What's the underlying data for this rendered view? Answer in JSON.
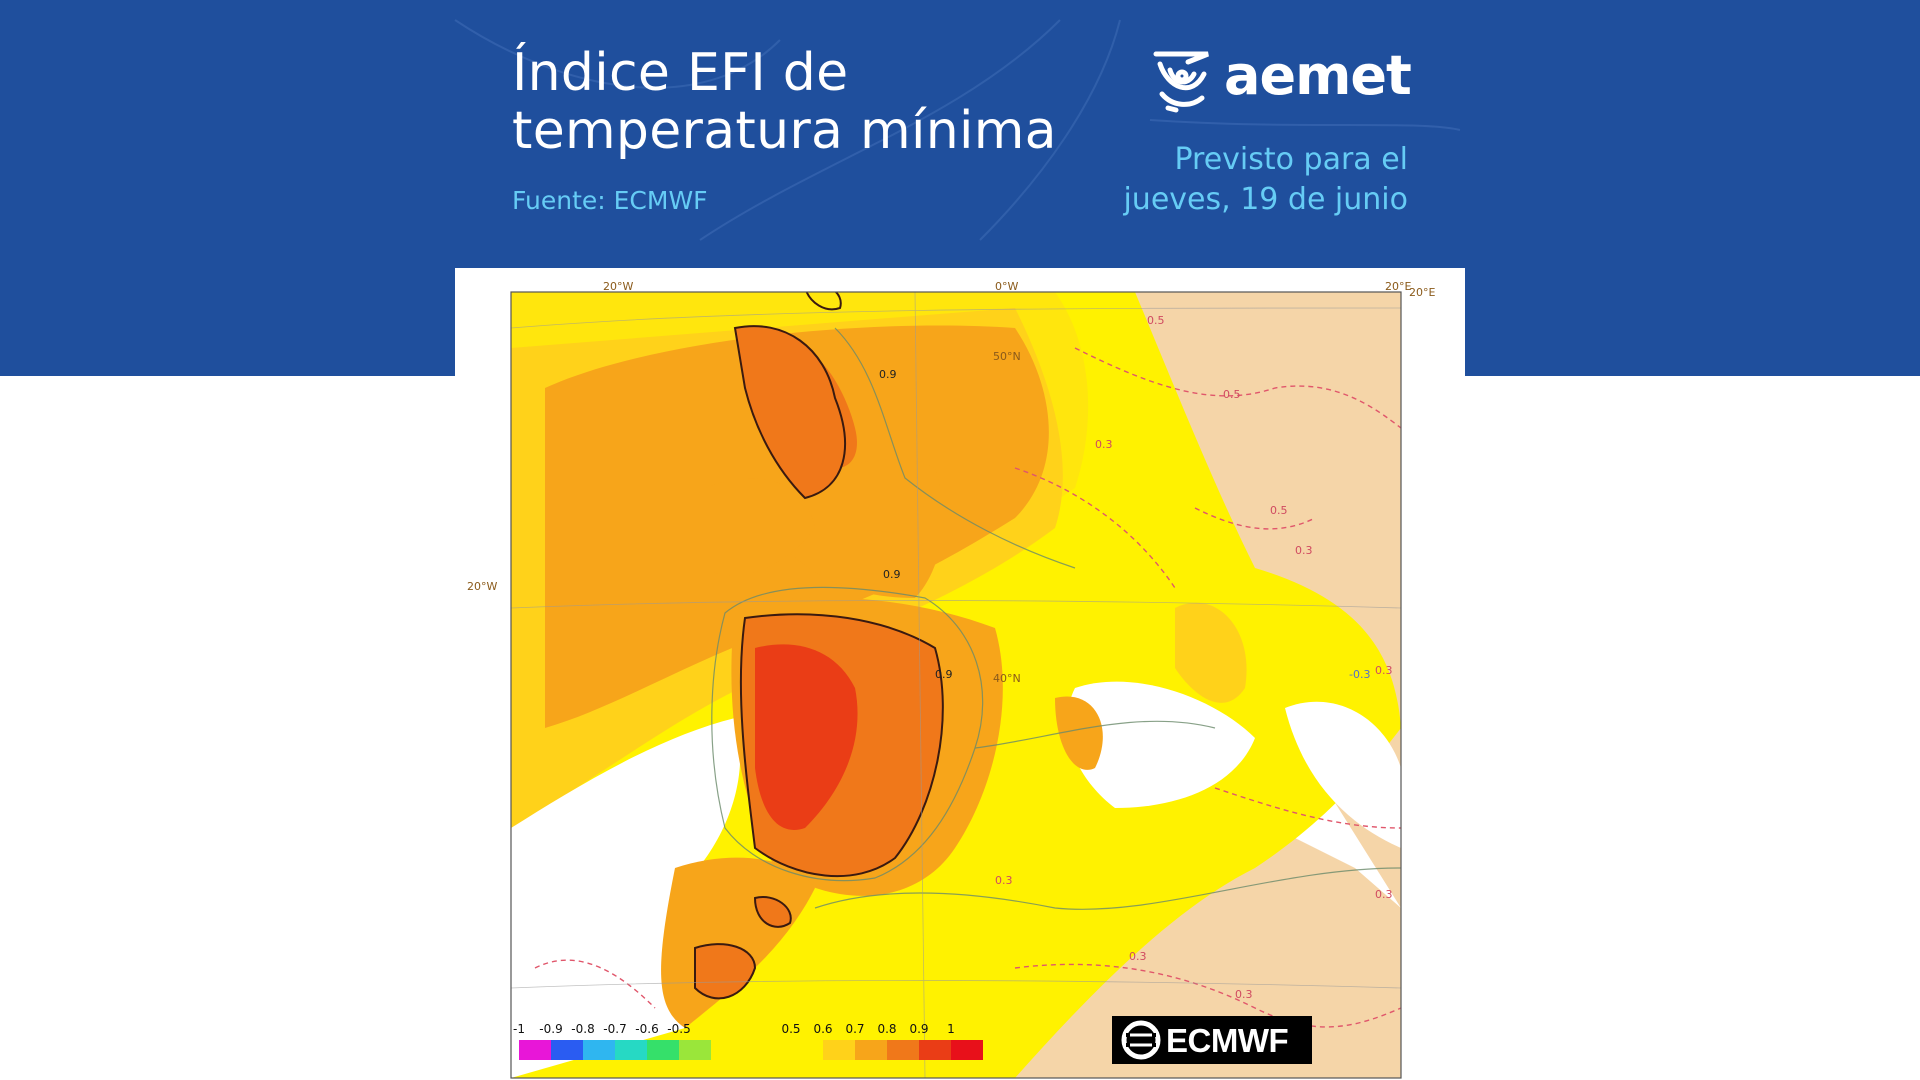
{
  "header": {
    "title_line1": "Índice EFI de",
    "title_line2": "temperatura mínima",
    "source": "Fuente: ECMWF",
    "brand": "aemet",
    "forecast_line1": "Previsto para el",
    "forecast_line2": "jueves, 19 de junio"
  },
  "map": {
    "graticule_labels": {
      "top_left": "20°W",
      "top_center": "0°W",
      "top_right": "20°E",
      "top_right_b": "20°E",
      "left": "20°W",
      "lat_upper": "50°N",
      "lat_lower": "40°N"
    },
    "contour_labels": [
      "0.9",
      "0.9",
      "0.5",
      "0.5",
      "0.5",
      "0.3",
      "0.3",
      "0.3",
      "0.3",
      "-0.3",
      "0.3",
      "0.9",
      "0.3",
      "0.3"
    ]
  },
  "colorbar": {
    "ticks": [
      "-1",
      "-0.9",
      "-0.8",
      "-0.7",
      "-0.6",
      "-0.5",
      "0.5",
      "0.6",
      "0.7",
      "0.8",
      "0.9",
      "1"
    ],
    "negative_colors": [
      "#e816d8",
      "#2a5cf2",
      "#2fb6f0",
      "#26d9c4",
      "#35e06a",
      "#9ae63a"
    ],
    "positive_colors": [
      "#fff200",
      "#ffd21a",
      "#f7a51a",
      "#f0781a",
      "#ea3d16",
      "#e8101a"
    ]
  },
  "ecmwf_logo": "ECMWF",
  "colors": {
    "band": "#1f4f9d",
    "accent_text": "#66ccf5"
  }
}
